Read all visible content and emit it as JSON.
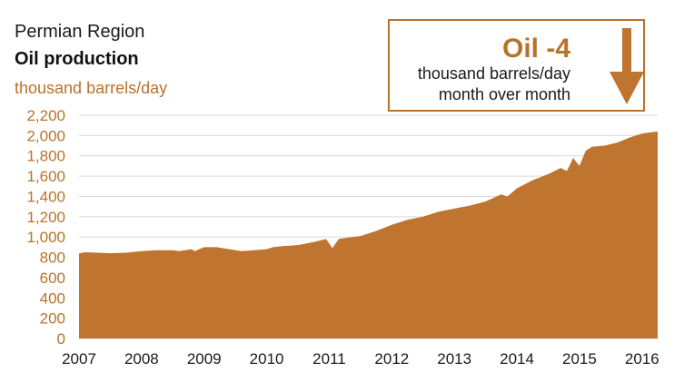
{
  "header": {
    "region": "Permian Region",
    "title": "Oil production",
    "unit": "thousand barrels/day"
  },
  "callout": {
    "headline": "Oil -4",
    "line1": "thousand barrels/day",
    "line2": "month over month",
    "icon": "down-arrow-icon"
  },
  "colors": {
    "accent": "#b8732b",
    "area": "#bf7430",
    "grid": "#d9d9d9",
    "text": "#1a1a1a"
  },
  "chart_data": {
    "type": "area",
    "title": "Oil production",
    "ylabel": "thousand barrels/day",
    "xlabel": "",
    "ylim": [
      0,
      2200
    ],
    "xlim": [
      2007.0,
      2016.25
    ],
    "grid": true,
    "yticks": [
      0,
      200,
      400,
      600,
      800,
      1000,
      1200,
      1400,
      1600,
      1800,
      2000,
      2200
    ],
    "ytick_labels": [
      "0",
      "200",
      "400",
      "600",
      "800",
      "1,000",
      "1,200",
      "1,400",
      "1,600",
      "1,800",
      "2,000",
      "2,200"
    ],
    "xticks": [
      2007,
      2008,
      2009,
      2010,
      2011,
      2012,
      2013,
      2014,
      2015,
      2016
    ],
    "xtick_labels": [
      "2007",
      "2008",
      "2009",
      "2010",
      "2011",
      "2012",
      "2013",
      "2014",
      "2015",
      "2016"
    ],
    "series": [
      {
        "x": [
          2007.0,
          2007.1,
          2007.3,
          2007.5,
          2007.75,
          2008.0,
          2008.25,
          2008.5,
          2008.6,
          2008.8,
          2008.85,
          2009.0,
          2009.2,
          2009.4,
          2009.6,
          2009.8,
          2010.0,
          2010.1,
          2010.25,
          2010.5,
          2010.75,
          2010.95,
          2011.05,
          2011.15,
          2011.25,
          2011.5,
          2011.75,
          2012.0,
          2012.25,
          2012.5,
          2012.75,
          2013.0,
          2013.25,
          2013.5,
          2013.75,
          2013.85,
          2014.0,
          2014.25,
          2014.5,
          2014.7,
          2014.8,
          2014.9,
          2015.0,
          2015.1,
          2015.2,
          2015.4,
          2015.6,
          2015.8,
          2016.0,
          2016.25
        ],
        "values": [
          840,
          850,
          845,
          840,
          845,
          860,
          870,
          870,
          860,
          880,
          860,
          900,
          900,
          880,
          860,
          870,
          880,
          900,
          910,
          920,
          950,
          980,
          890,
          980,
          990,
          1010,
          1060,
          1120,
          1170,
          1200,
          1250,
          1280,
          1310,
          1350,
          1420,
          1400,
          1480,
          1560,
          1620,
          1680,
          1650,
          1780,
          1700,
          1850,
          1890,
          1900,
          1930,
          1980,
          2020,
          2040
        ]
      }
    ]
  }
}
